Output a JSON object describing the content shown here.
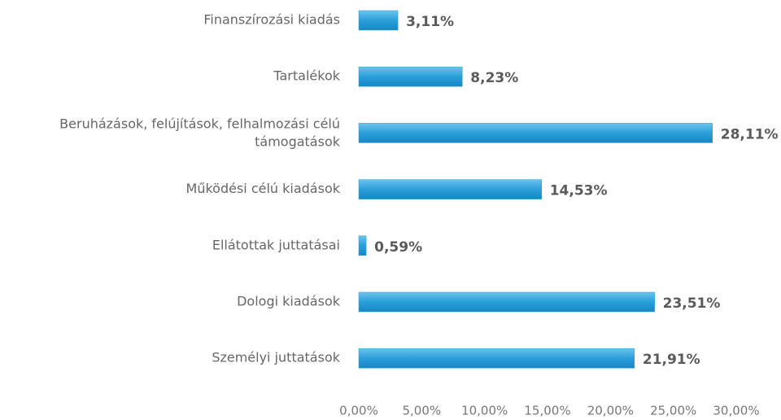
{
  "chart_data": {
    "type": "barh",
    "categories": [
      "Finanszírozási kiadás",
      "Tartalékok",
      "Beruházások, felújítások, felhalmozási célú támogatások",
      "Működési célú kiadások",
      "Ellátottak juttatásai",
      "Dologi kiadások",
      "Személyi juttatások"
    ],
    "values": [
      3.11,
      8.23,
      28.11,
      14.53,
      0.59,
      23.51,
      21.91
    ],
    "value_labels": [
      "3,11%",
      "8,23%",
      "28,11%",
      "14,53%",
      "0,59%",
      "23,51%",
      "21,91%"
    ],
    "color": "#2a9fd8",
    "xlim": [
      0,
      30
    ],
    "xticks": [
      {
        "value": 0,
        "label": "0,00%"
      },
      {
        "value": 5,
        "label": "5,00%"
      },
      {
        "value": 10,
        "label": "10,00%"
      },
      {
        "value": 15,
        "label": "15,00%"
      },
      {
        "value": 20,
        "label": "20,00%"
      },
      {
        "value": 25,
        "label": "25,00%"
      },
      {
        "value": 30,
        "label": "30,00%"
      }
    ],
    "grid": false
  }
}
